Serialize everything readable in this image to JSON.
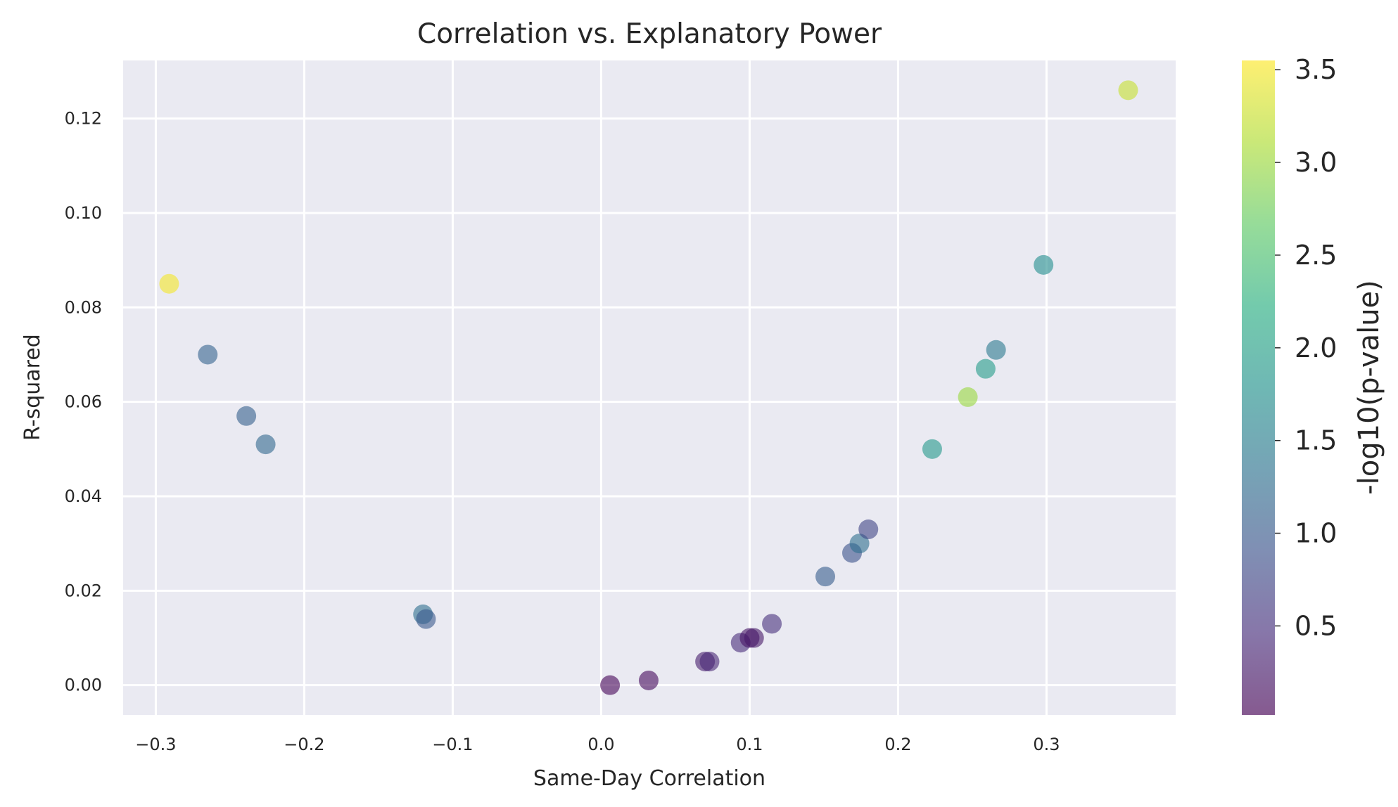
{
  "chart_data": {
    "type": "scatter",
    "title": "Correlation vs. Explanatory Power",
    "xlabel": "Same-Day Correlation",
    "ylabel": "R-squared",
    "xlim": [
      -0.322,
      0.387
    ],
    "ylim": [
      -0.0063,
      0.1323
    ],
    "xticks": [
      -0.3,
      -0.2,
      -0.1,
      0.0,
      0.1,
      0.2,
      0.3
    ],
    "xtick_labels": [
      "−0.3",
      "−0.2",
      "−0.1",
      "0.0",
      "0.1",
      "0.2",
      "0.3"
    ],
    "yticks": [
      0.0,
      0.02,
      0.04,
      0.06,
      0.08,
      0.1,
      0.12
    ],
    "ytick_labels": [
      "0.00",
      "0.02",
      "0.04",
      "0.06",
      "0.08",
      "0.10",
      "0.12"
    ],
    "grid": true,
    "colorbar": {
      "label": "-log10(p-value)",
      "range": [
        0.02,
        3.55
      ],
      "colormap": "viridis",
      "ticks": [
        0.5,
        1.0,
        1.5,
        2.0,
        2.5,
        3.0,
        3.5
      ],
      "tick_labels": [
        "0.5",
        "1.0",
        "1.5",
        "2.0",
        "2.5",
        "3.0",
        "3.5"
      ]
    },
    "points": [
      {
        "x": -0.291,
        "y": 0.085,
        "c": 3.5
      },
      {
        "x": -0.265,
        "y": 0.07,
        "c": 1.15
      },
      {
        "x": -0.239,
        "y": 0.057,
        "c": 1.1
      },
      {
        "x": -0.226,
        "y": 0.051,
        "c": 1.2
      },
      {
        "x": -0.12,
        "y": 0.015,
        "c": 1.3
      },
      {
        "x": -0.118,
        "y": 0.014,
        "c": 1.0
      },
      {
        "x": 0.006,
        "y": 0.0,
        "c": 0.05
      },
      {
        "x": 0.032,
        "y": 0.001,
        "c": 0.1
      },
      {
        "x": 0.07,
        "y": 0.005,
        "c": 0.3
      },
      {
        "x": 0.073,
        "y": 0.005,
        "c": 0.4
      },
      {
        "x": 0.094,
        "y": 0.009,
        "c": 0.45
      },
      {
        "x": 0.1,
        "y": 0.01,
        "c": 0.2
      },
      {
        "x": 0.103,
        "y": 0.01,
        "c": 0.25
      },
      {
        "x": 0.115,
        "y": 0.013,
        "c": 0.5
      },
      {
        "x": 0.151,
        "y": 0.023,
        "c": 1.05
      },
      {
        "x": 0.169,
        "y": 0.028,
        "c": 0.9
      },
      {
        "x": 0.174,
        "y": 0.03,
        "c": 1.3
      },
      {
        "x": 0.18,
        "y": 0.033,
        "c": 0.75
      },
      {
        "x": 0.223,
        "y": 0.05,
        "c": 1.9
      },
      {
        "x": 0.247,
        "y": 0.061,
        "c": 3.0
      },
      {
        "x": 0.259,
        "y": 0.067,
        "c": 1.95
      },
      {
        "x": 0.266,
        "y": 0.071,
        "c": 1.45
      },
      {
        "x": 0.298,
        "y": 0.089,
        "c": 1.75
      },
      {
        "x": 0.355,
        "y": 0.126,
        "c": 3.25
      }
    ]
  }
}
